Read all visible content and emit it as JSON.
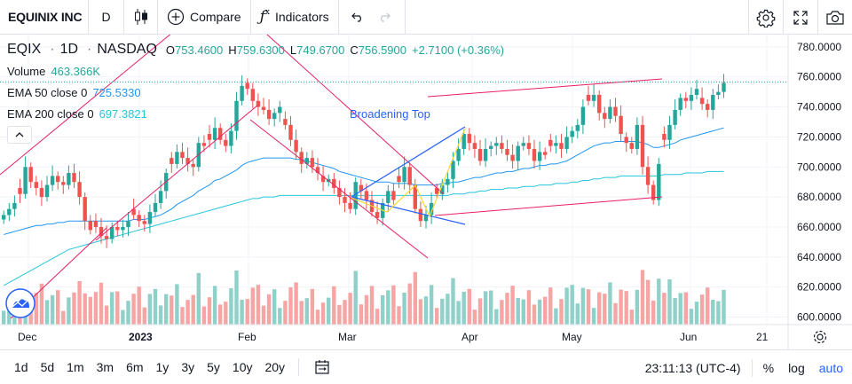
{
  "toolbar": {
    "symbol": "EQUINIX INC",
    "interval": "D",
    "chart_type_icon": "candles-icon",
    "compare_label": "Compare",
    "indicators_label": "Indicators",
    "undo_icon": "undo-icon",
    "redo_icon": "redo-icon",
    "settings_icon": "gear-icon",
    "fullscreen_icon": "fullscreen-icon",
    "snapshot_icon": "camera-icon"
  },
  "legend": {
    "ticker": "EQIX",
    "interval": "1D",
    "exchange": "NASDAQ",
    "o_label": "O",
    "o": "753.4600",
    "h_label": "H",
    "h": "759.6300",
    "l_label": "L",
    "l": "749.6700",
    "c_label": "C",
    "c": "756.5900",
    "change": "+2.7100 (+0.36%)",
    "volume_label": "Volume",
    "volume": "463.366K",
    "ema50_label": "EMA 50 close 0",
    "ema50": "725.5330",
    "ema200_label": "EMA 200 close 0",
    "ema200": "697.3821"
  },
  "bottombar": {
    "ranges": [
      "1d",
      "5d",
      "1m",
      "3m",
      "6m",
      "1y",
      "3y",
      "5y",
      "10y",
      "20y"
    ],
    "time": "23:11:13 (UTC-4)",
    "percent_label": "%",
    "log_label": "log",
    "auto_label": "auto"
  },
  "colors": {
    "up": "#26a69a",
    "down": "#ef5350",
    "ema50": "#2196f3",
    "ema200": "#26c6da",
    "drawing": "#e91e63",
    "pattern": "#2962ff"
  },
  "chart_data": {
    "type": "candlestick",
    "y_ticks": [
      "780.0000",
      "760.0000",
      "740.0000",
      "720.0000",
      "700.0000",
      "680.0000",
      "660.0000",
      "640.0000",
      "620.0000",
      "600.0000"
    ],
    "ylim": [
      595,
      787
    ],
    "x_labels": [
      {
        "label": "Dec",
        "bold": false
      },
      {
        "label": "2023",
        "bold": true
      },
      {
        "label": "Feb",
        "bold": false
      },
      {
        "label": "Mar",
        "bold": false
      },
      {
        "label": "Apr",
        "bold": false
      },
      {
        "label": "May",
        "bold": false
      },
      {
        "label": "Jun",
        "bold": false
      },
      {
        "label": "21",
        "bold": false
      }
    ],
    "last_price": "756.5900",
    "annotation": "Broadening Top",
    "close": [
      668,
      672,
      676,
      682,
      700,
      690,
      686,
      680,
      688,
      694,
      690,
      688,
      696,
      690,
      680,
      664,
      658,
      660,
      654,
      652,
      660,
      658,
      660,
      664,
      668,
      664,
      662,
      670,
      676,
      684,
      696,
      702,
      710,
      706,
      702,
      700,
      716,
      714,
      718,
      726,
      718,
      714,
      724,
      744,
      754,
      752,
      744,
      740,
      738,
      732,
      736,
      740,
      728,
      718,
      710,
      702,
      706,
      700,
      696,
      690,
      692,
      686,
      680,
      676,
      672,
      690,
      684,
      678,
      670,
      666,
      676,
      684,
      678,
      690,
      700,
      688,
      672,
      664,
      668,
      676,
      682,
      688,
      692,
      704,
      712,
      722,
      716,
      712,
      704,
      712,
      714,
      716,
      712,
      708,
      704,
      714,
      716,
      712,
      704,
      710,
      708,
      714,
      716,
      712,
      720,
      724,
      728,
      740,
      744,
      748,
      736,
      732,
      740,
      734,
      722,
      716,
      712,
      728,
      700,
      688,
      678,
      702,
      718,
      728,
      738,
      746,
      744,
      748,
      752,
      742,
      738,
      748,
      750,
      756
    ],
    "ema50": [
      655,
      656,
      657,
      658,
      659,
      660,
      661,
      661,
      662,
      662,
      663,
      663,
      664,
      664,
      664,
      664,
      664,
      664,
      664,
      664,
      664,
      664,
      664,
      664,
      665,
      665,
      665,
      666,
      667,
      668,
      670,
      672,
      675,
      677,
      679,
      681,
      684,
      686,
      688,
      691,
      692,
      694,
      696,
      698,
      701,
      703,
      704,
      705,
      706,
      706,
      706,
      706,
      706,
      706,
      705,
      705,
      704,
      703,
      702,
      701,
      700,
      699,
      697,
      696,
      695,
      694,
      693,
      692,
      691,
      690,
      690,
      690,
      689,
      689,
      689,
      689,
      688,
      688,
      688,
      688,
      688,
      689,
      689,
      690,
      690,
      691,
      692,
      693,
      693,
      694,
      695,
      696,
      696,
      697,
      697,
      698,
      699,
      699,
      700,
      701,
      701,
      702,
      702,
      703,
      704,
      706,
      708,
      710,
      712,
      714,
      715,
      716,
      716,
      717,
      717,
      717,
      717,
      717,
      716,
      715,
      713,
      713,
      714,
      715,
      716,
      718,
      719,
      720,
      721,
      722,
      723,
      724,
      725,
      726
    ],
    "ema200": [
      621,
      623,
      625,
      627,
      629,
      631,
      633,
      635,
      637,
      639,
      641,
      643,
      645,
      646,
      647,
      648,
      649,
      650,
      651,
      652,
      653,
      654,
      655,
      656,
      657,
      658,
      659,
      660,
      661,
      662,
      663,
      664,
      665,
      666,
      667,
      668,
      669,
      670,
      671,
      672,
      673,
      674,
      675,
      676,
      677,
      678,
      679,
      679,
      680,
      680,
      680,
      681,
      681,
      681,
      681,
      681,
      681,
      681,
      681,
      681,
      681,
      681,
      681,
      681,
      681,
      681,
      681,
      681,
      681,
      681,
      681,
      681,
      681,
      681,
      681,
      681,
      681,
      681,
      681,
      681,
      681,
      681,
      681,
      682,
      682,
      682,
      683,
      683,
      684,
      684,
      685,
      685,
      685,
      686,
      686,
      686,
      687,
      687,
      687,
      688,
      688,
      688,
      689,
      689,
      689,
      690,
      690,
      691,
      691,
      692,
      692,
      693,
      693,
      693,
      694,
      694,
      694,
      694,
      694,
      694,
      694,
      694,
      695,
      695,
      695,
      695,
      696,
      696,
      696,
      696,
      697,
      697,
      697,
      697
    ]
  }
}
